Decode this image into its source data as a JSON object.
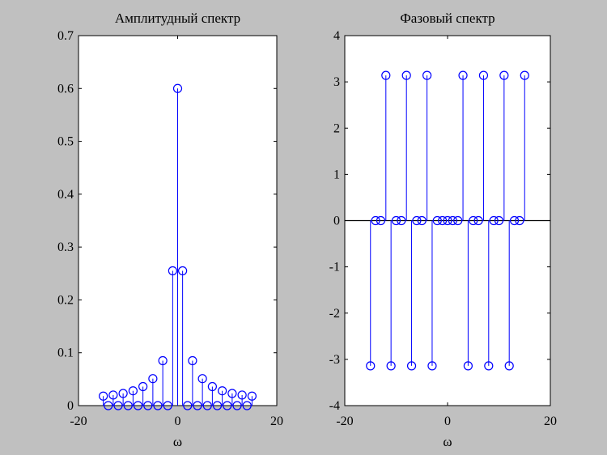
{
  "colors": {
    "background": "#c0c0c0",
    "axes": "#ffffff",
    "stem": "#0000ff",
    "baseline": "#000000"
  },
  "chart_data": [
    {
      "type": "stem",
      "title": "Амплитудный спектр",
      "xlabel": "ω",
      "ylabel": "",
      "xlim": [
        -20,
        20
      ],
      "ylim": [
        0,
        0.7
      ],
      "xticks": [
        -20,
        0,
        20
      ],
      "yticks": [
        0,
        0.1,
        0.2,
        0.3,
        0.4,
        0.5,
        0.6,
        0.7
      ],
      "ytick_labels": [
        "0",
        "0.1",
        "0.2",
        "0.3",
        "0.4",
        "0.5",
        "0.6",
        "0.7"
      ],
      "grid": false,
      "x": [
        -15,
        -14,
        -13,
        -12,
        -11,
        -10,
        -9,
        -8,
        -7,
        -6,
        -5,
        -4,
        -3,
        -2,
        -1,
        0,
        1,
        2,
        3,
        4,
        5,
        6,
        7,
        8,
        9,
        10,
        11,
        12,
        13,
        14,
        15
      ],
      "values": [
        0.018,
        0,
        0.02,
        0,
        0.023,
        0,
        0.028,
        0,
        0.036,
        0,
        0.051,
        0,
        0.085,
        0,
        0.255,
        0.6,
        0.255,
        0,
        0.085,
        0,
        0.051,
        0,
        0.036,
        0,
        0.028,
        0,
        0.023,
        0,
        0.02,
        0,
        0.018
      ]
    },
    {
      "type": "stem",
      "title": "Фазовый спектр",
      "xlabel": "ω",
      "ylabel": "",
      "xlim": [
        -20,
        20
      ],
      "ylim": [
        -4,
        4
      ],
      "xticks": [
        -20,
        0,
        20
      ],
      "yticks": [
        -4,
        -3,
        -2,
        -1,
        0,
        1,
        2,
        3,
        4
      ],
      "ytick_labels": [
        "-4",
        "-3",
        "-2",
        "-1",
        "0",
        "1",
        "2",
        "3",
        "4"
      ],
      "grid": false,
      "baseline": 0,
      "x": [
        -15,
        -14,
        -13,
        -12,
        -11,
        -10,
        -9,
        -8,
        -7,
        -6,
        -5,
        -4,
        -3,
        -2,
        -1,
        0,
        1,
        2,
        3,
        4,
        5,
        6,
        7,
        8,
        9,
        10,
        11,
        12,
        13,
        14,
        15
      ],
      "values": [
        -3.14,
        0,
        0,
        3.14,
        -3.14,
        0,
        0,
        3.14,
        -3.14,
        0,
        0,
        3.14,
        -3.14,
        0,
        0,
        0,
        0,
        0,
        3.14,
        -3.14,
        0,
        0,
        3.14,
        -3.14,
        0,
        0,
        3.14,
        -3.14,
        0,
        0,
        3.14
      ]
    }
  ]
}
